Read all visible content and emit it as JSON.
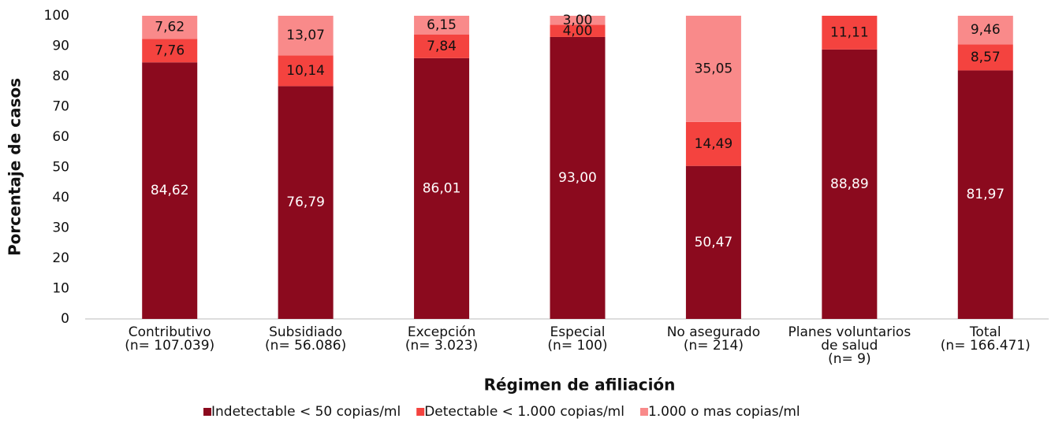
{
  "chart_data": {
    "type": "stacked_bar",
    "x_label": "Régimen de afiliación",
    "y_label": "Porcentaje de casos",
    "categories": [
      [
        "Contributivo",
        "(n= 107.039)"
      ],
      [
        "Subsidiado",
        "(n= 56.086)"
      ],
      [
        "Excepción",
        "(n= 3.023)"
      ],
      [
        "Especial",
        "(n= 100)"
      ],
      [
        "No asegurado",
        "(n= 214)"
      ],
      [
        "Planes voluntarios",
        "de salud",
        "(n= 9)"
      ],
      [
        "Total",
        "(n= 166.471)"
      ]
    ],
    "series": [
      {
        "name": "Indetectable < 50 copias/ml",
        "color": "#8b0a1e",
        "label_color": "#ffffff",
        "values": [
          84.62,
          76.79,
          86.01,
          93.0,
          50.47,
          88.89,
          81.97
        ],
        "value_labels": [
          "84,62",
          "76,79",
          "86,01",
          "93,00",
          "50,47",
          "88,89",
          "81,97"
        ]
      },
      {
        "name": "Detectable < 1.000 copias/ml",
        "color": "#f4433f",
        "label_color": "#111111",
        "values": [
          7.76,
          10.14,
          7.84,
          4.0,
          14.49,
          11.11,
          8.57
        ],
        "value_labels": [
          "7,76",
          "10,14",
          "7,84",
          "4,00",
          "14,49",
          "11,11",
          "8,57"
        ]
      },
      {
        "name": "1.000 o mas copias/ml",
        "color": "#f98a8a",
        "label_color": "#111111",
        "values": [
          7.62,
          13.07,
          6.15,
          3.0,
          35.05,
          null,
          9.46
        ],
        "value_labels": [
          "7,62",
          "13,07",
          "6,15",
          "3,00",
          "35,05",
          null,
          "9,46"
        ]
      }
    ],
    "ylim": [
      0,
      100
    ],
    "yticks": [
      0,
      10,
      20,
      30,
      40,
      50,
      60,
      70,
      80,
      90,
      100
    ],
    "grid": false,
    "legend": "bottom"
  }
}
